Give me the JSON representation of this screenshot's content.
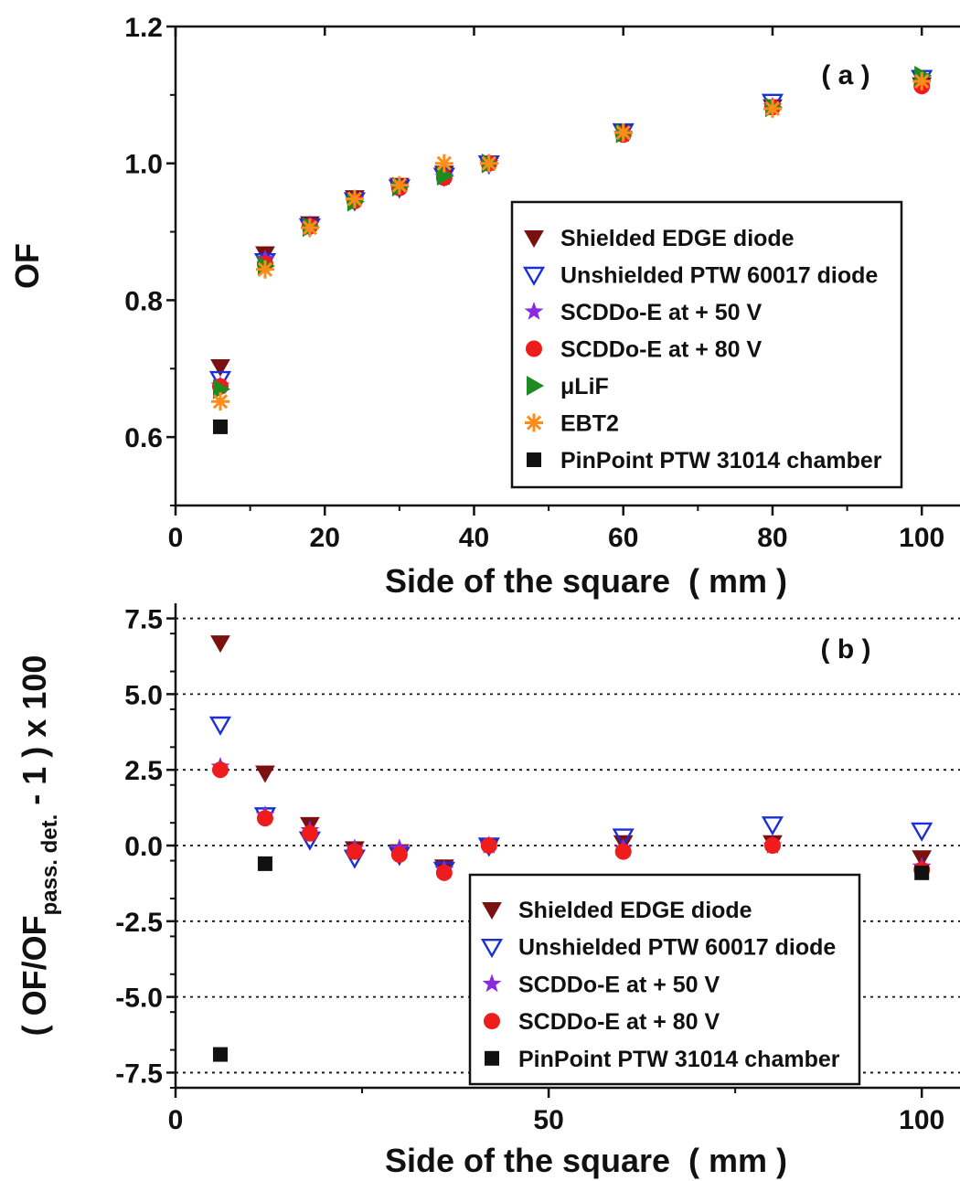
{
  "chart_data": [
    {
      "type": "scatter",
      "panel_label": "( a )",
      "xlabel": "Side of the square  ( mm )",
      "ylabel": "OF",
      "xlim": [
        0,
        105
      ],
      "ylim": [
        0.5,
        1.2
      ],
      "xticks": [
        "0",
        "20",
        "40",
        "60",
        "80",
        "100"
      ],
      "xtick_values": [
        0,
        20,
        40,
        60,
        80,
        100
      ],
      "yticks": [
        "0.6",
        "0.8",
        "1.0",
        "1.2"
      ],
      "ytick_values": [
        0.6,
        0.8,
        1.0,
        1.2
      ],
      "legend_position": "center-right",
      "series": [
        {
          "name": "Shielded EDGE diode",
          "marker": "triangle-down-filled",
          "color": "#7a1010",
          "x": [
            6,
            12,
            18,
            24,
            30,
            36,
            42,
            60,
            80,
            100
          ],
          "y": [
            0.703,
            0.868,
            0.912,
            0.95,
            0.968,
            0.986,
            1.0,
            1.045,
            1.083,
            1.115
          ]
        },
        {
          "name": "Unshielded PTW 60017 diode",
          "marker": "triangle-down-open",
          "color": "#1a2fd6",
          "x": [
            6,
            12,
            18,
            24,
            30,
            36,
            42,
            60,
            80,
            100
          ],
          "y": [
            0.685,
            0.857,
            0.908,
            0.946,
            0.965,
            0.982,
            1.0,
            1.047,
            1.09,
            1.125
          ]
        },
        {
          "name": "SCDDo-E at + 50 V",
          "marker": "star",
          "color": "#8a2be2",
          "x": [
            6,
            12,
            18,
            24,
            30,
            36,
            42,
            60,
            80,
            100
          ],
          "y": [
            0.675,
            0.86,
            0.91,
            0.947,
            0.966,
            0.98,
            1.0,
            1.043,
            1.083,
            1.117
          ]
        },
        {
          "name": "SCDDo-E at + 80 V",
          "marker": "circle",
          "color": "#ee1c1c",
          "x": [
            6,
            12,
            18,
            24,
            30,
            36,
            42,
            60,
            80,
            100
          ],
          "y": [
            0.674,
            0.853,
            0.908,
            0.945,
            0.964,
            0.979,
            1.0,
            1.042,
            1.082,
            1.113
          ]
        },
        {
          "name": "μLiF",
          "marker": "triangle-right-filled",
          "color": "#1f8a1f",
          "x": [
            6,
            12,
            18,
            24,
            30,
            36,
            42,
            60,
            80,
            100
          ],
          "y": [
            0.67,
            0.85,
            0.907,
            0.944,
            0.966,
            0.982,
            1.0,
            1.044,
            1.082,
            1.128
          ]
        },
        {
          "name": "EBT2",
          "marker": "asterisk",
          "color": "#ff8c1a",
          "x": [
            6,
            12,
            18,
            24,
            30,
            36,
            42,
            60,
            80,
            100
          ],
          "y": [
            0.652,
            0.845,
            0.906,
            0.948,
            0.968,
            1.0,
            1.0,
            1.045,
            1.08,
            1.12
          ]
        },
        {
          "name": "PinPoint PTW 31014 chamber",
          "marker": "square",
          "color": "#111111",
          "x": [
            6
          ],
          "y": [
            0.615
          ]
        }
      ]
    },
    {
      "type": "scatter",
      "panel_label": "( b )",
      "xlabel": "Side of the square  ( mm )",
      "ylabel_parts": [
        "( OF/OF",
        "pass. det.",
        " - 1 ) x 100"
      ],
      "xlim": [
        0,
        105
      ],
      "ylim": [
        -8.0,
        8.0
      ],
      "xticks": [
        "0",
        "50",
        "100"
      ],
      "xtick_values": [
        0,
        50,
        100
      ],
      "yticks": [
        "-7.5",
        "-5.0",
        "-2.5",
        "0.0",
        "2.5",
        "5.0",
        "7.5"
      ],
      "ytick_values": [
        -7.5,
        -5.0,
        -2.5,
        0.0,
        2.5,
        5.0,
        7.5
      ],
      "gridlines_y": [
        -7.5,
        -5.0,
        -2.5,
        0.0,
        2.5,
        5.0,
        7.5
      ],
      "grid": "horizontal dotted",
      "legend_position": "bottom-center",
      "series": [
        {
          "name": "Shielded EDGE diode",
          "marker": "triangle-down-filled",
          "color": "#7a1010",
          "x": [
            6,
            12,
            18,
            24,
            30,
            36,
            42,
            60,
            80,
            100
          ],
          "y": [
            6.7,
            2.4,
            0.7,
            -0.1,
            -0.2,
            -0.7,
            0.0,
            0.1,
            0.1,
            -0.4
          ]
        },
        {
          "name": "Unshielded PTW 60017 diode",
          "marker": "triangle-down-open",
          "color": "#1a2fd6",
          "x": [
            6,
            12,
            18,
            24,
            30,
            36,
            42,
            60,
            80,
            100
          ],
          "y": [
            4.0,
            1.0,
            0.2,
            -0.4,
            -0.3,
            -0.8,
            0.0,
            0.3,
            0.7,
            0.5
          ]
        },
        {
          "name": "SCDDo-E at + 50 V",
          "marker": "star",
          "color": "#8a2be2",
          "x": [
            6,
            12,
            18,
            24,
            30,
            36,
            42,
            60,
            80,
            100
          ],
          "y": [
            2.6,
            1.0,
            0.5,
            -0.1,
            -0.1,
            -0.8,
            0.0,
            -0.1,
            0.0,
            -0.7
          ]
        },
        {
          "name": "SCDDo-E at + 80 V",
          "marker": "circle",
          "color": "#ee1c1c",
          "x": [
            6,
            12,
            18,
            24,
            30,
            36,
            42,
            60,
            80,
            100
          ],
          "y": [
            2.5,
            0.9,
            0.4,
            -0.2,
            -0.3,
            -0.9,
            0.0,
            -0.2,
            0.0,
            -0.8
          ]
        },
        {
          "name": "PinPoint PTW 31014 chamber",
          "marker": "square",
          "color": "#111111",
          "x": [
            6,
            12,
            100
          ],
          "y": [
            -6.9,
            -0.6,
            -0.9
          ]
        }
      ]
    }
  ]
}
